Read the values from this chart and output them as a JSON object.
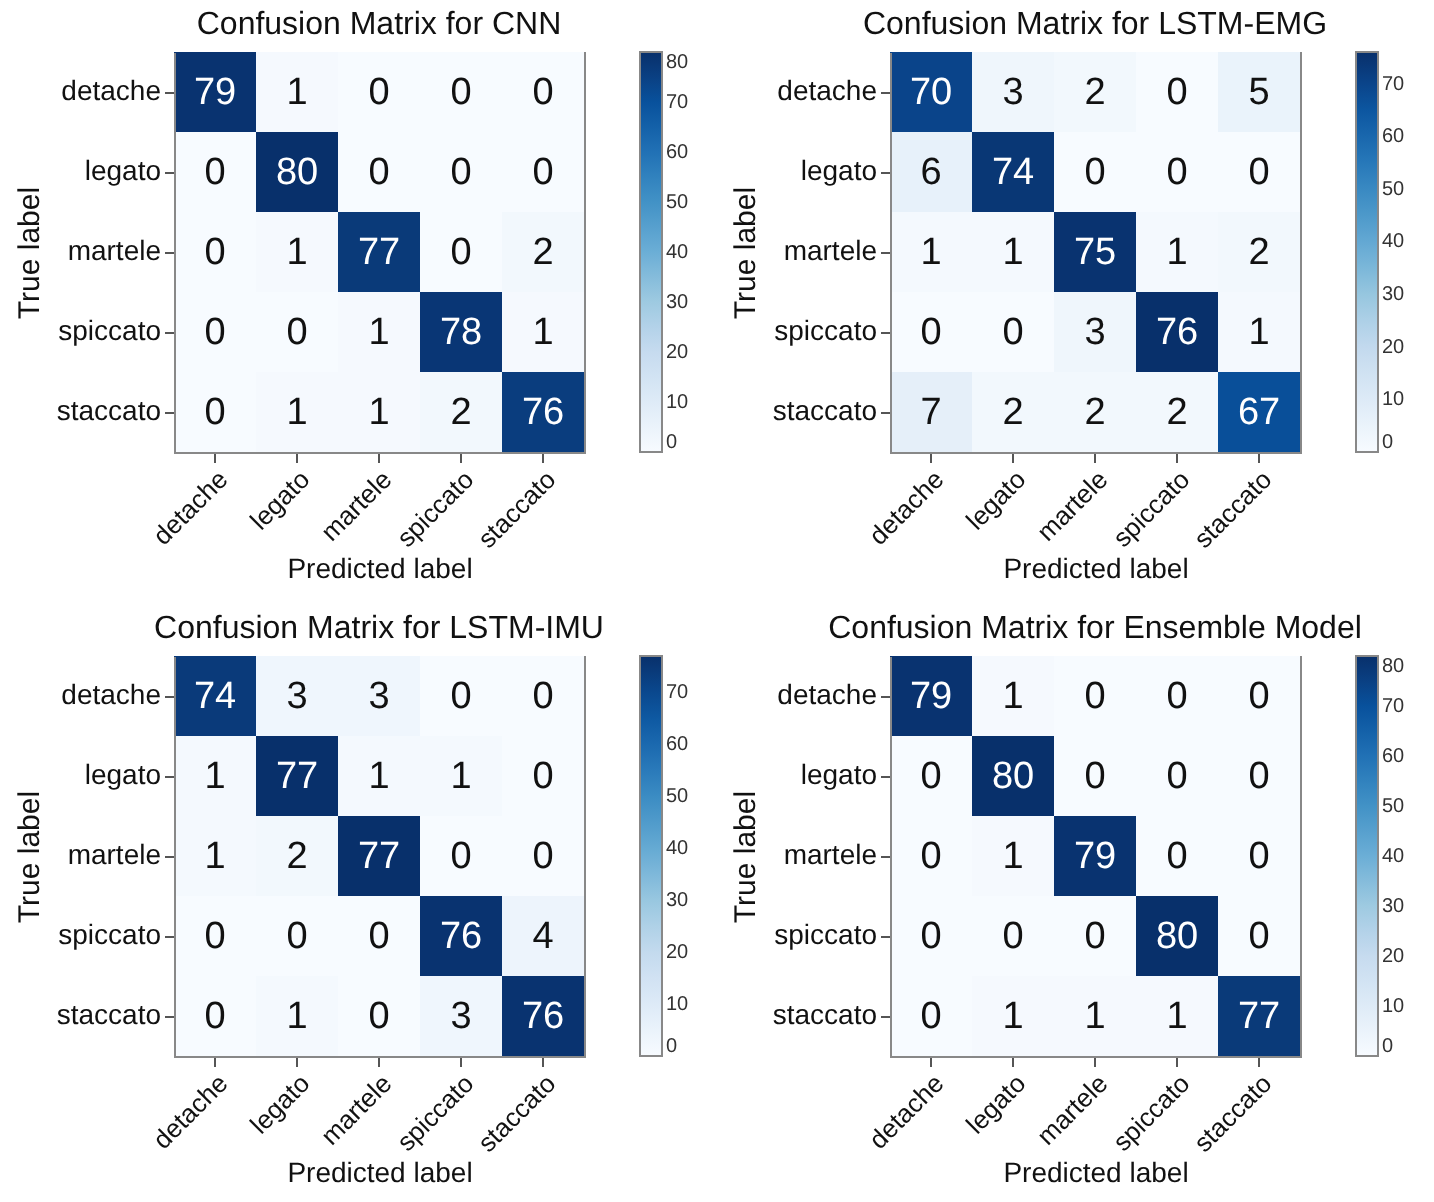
{
  "chart_data": [
    {
      "type": "heatmap",
      "title": "Confusion Matrix for CNN",
      "xlabel": "Predicted label",
      "ylabel": "True label",
      "categories": [
        "detache",
        "legato",
        "martele",
        "spiccato",
        "staccato"
      ],
      "y_categories": [
        "detache",
        "legato",
        "martele",
        "spiccato",
        "staccato"
      ],
      "cells": [
        [
          79,
          1,
          0,
          0,
          0
        ],
        [
          0,
          80,
          0,
          0,
          0
        ],
        [
          0,
          1,
          77,
          0,
          2
        ],
        [
          0,
          0,
          1,
          78,
          1
        ],
        [
          0,
          1,
          1,
          2,
          76
        ]
      ],
      "data_labels": true,
      "clim": [
        0,
        80
      ],
      "cticks": [
        0,
        10,
        20,
        30,
        40,
        50,
        60,
        70,
        80
      ]
    },
    {
      "type": "heatmap",
      "title": "Confusion Matrix for LSTM-EMG",
      "xlabel": "Predicted label",
      "ylabel": "True label",
      "categories": [
        "detache",
        "legato",
        "martele",
        "spiccato",
        "staccato"
      ],
      "y_categories": [
        "detache",
        "legato",
        "martele",
        "spiccato",
        "staccato"
      ],
      "cells": [
        [
          70,
          3,
          2,
          0,
          5
        ],
        [
          6,
          74,
          0,
          0,
          0
        ],
        [
          1,
          1,
          75,
          1,
          2
        ],
        [
          0,
          0,
          3,
          76,
          1
        ],
        [
          7,
          2,
          2,
          2,
          67
        ]
      ],
      "data_labels": true,
      "clim": [
        0,
        76
      ],
      "cticks": [
        0,
        10,
        20,
        30,
        40,
        50,
        60,
        70
      ]
    },
    {
      "type": "heatmap",
      "title": "Confusion Matrix for LSTM-IMU",
      "xlabel": "Predicted label",
      "ylabel": "True label",
      "categories": [
        "detache",
        "legato",
        "martele",
        "spiccato",
        "staccato"
      ],
      "y_categories": [
        "detache",
        "legato",
        "martele",
        "spiccato",
        "staccato"
      ],
      "cells": [
        [
          74,
          3,
          3,
          0,
          0
        ],
        [
          1,
          77,
          1,
          1,
          0
        ],
        [
          1,
          2,
          77,
          0,
          0
        ],
        [
          0,
          0,
          0,
          76,
          4
        ],
        [
          0,
          1,
          0,
          3,
          76
        ]
      ],
      "data_labels": true,
      "clim": [
        0,
        77
      ],
      "cticks": [
        0,
        10,
        20,
        30,
        40,
        50,
        60,
        70
      ]
    },
    {
      "type": "heatmap",
      "title": "Confusion Matrix for Ensemble Model",
      "xlabel": "Predicted label",
      "ylabel": "True label",
      "categories": [
        "detache",
        "legato",
        "martele",
        "spiccato",
        "staccato"
      ],
      "y_categories": [
        "detache",
        "legato",
        "martele",
        "spiccato",
        "staccato"
      ],
      "cells": [
        [
          79,
          1,
          0,
          0,
          0
        ],
        [
          0,
          80,
          0,
          0,
          0
        ],
        [
          0,
          1,
          79,
          0,
          0
        ],
        [
          0,
          0,
          0,
          80,
          0
        ],
        [
          0,
          1,
          1,
          1,
          77
        ]
      ],
      "data_labels": true,
      "clim": [
        0,
        80
      ],
      "cticks": [
        0,
        10,
        20,
        30,
        40,
        50,
        60,
        70,
        80
      ]
    }
  ]
}
